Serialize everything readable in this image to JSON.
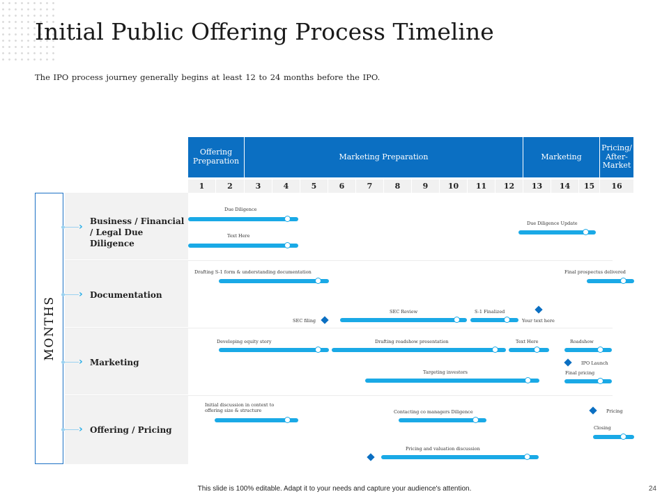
{
  "title": "Initial Public Offering Process Timeline",
  "subtitle": "The IPO process journey generally begins at least 12 to 24 months before the IPO.",
  "phases": [
    {
      "label": "Offering Preparation"
    },
    {
      "label": "Marketing Preparation"
    },
    {
      "label": "Marketing"
    },
    {
      "label": "Pricing/ After-Market"
    }
  ],
  "months": [
    "1",
    "2",
    "3",
    "4",
    "5",
    "6",
    "7",
    "8",
    "9",
    "10",
    "11",
    "12",
    "13",
    "14",
    "15",
    "16"
  ],
  "axis_label": "MONTHS",
  "categories": [
    {
      "label": "Business / Financial / Legal Due Diligence"
    },
    {
      "label": "Documentation"
    },
    {
      "label": "Marketing"
    },
    {
      "label": "Offering / Pricing"
    }
  ],
  "tasks": [
    {
      "label": "Due Diligence"
    },
    {
      "label": "Text Here"
    },
    {
      "label": "Due Diligence Update"
    },
    {
      "label": "Drafting S-1 form & understanding documentation"
    },
    {
      "label": "Final prospectus delivered"
    },
    {
      "label": "SEC Review"
    },
    {
      "label": "S-1 Finalized"
    },
    {
      "label": "Developing equity story"
    },
    {
      "label": "Drafting roadshow presentation"
    },
    {
      "label": "Text Here"
    },
    {
      "label": "Roadshow"
    },
    {
      "label": "Targeting investors"
    },
    {
      "label": "Final pricing"
    },
    {
      "label": "Initial discussion in context to offering size & structure"
    },
    {
      "label": "Contacting co managers Diligence"
    },
    {
      "label": "Closing"
    },
    {
      "label": "Pricing and valuation discussion"
    }
  ],
  "milestones": [
    {
      "label": "SEC filing"
    },
    {
      "label": "Your text here"
    },
    {
      "label": "IPO Launch"
    },
    {
      "label": "Pricing"
    }
  ],
  "footer": "This slide is 100% editable. Adapt it to your needs and capture your audience's attention.",
  "page_number": "24",
  "colors": {
    "accent": "#0b6fc2",
    "bar": "#1aa9e6",
    "panel": "#f2f2f2"
  }
}
